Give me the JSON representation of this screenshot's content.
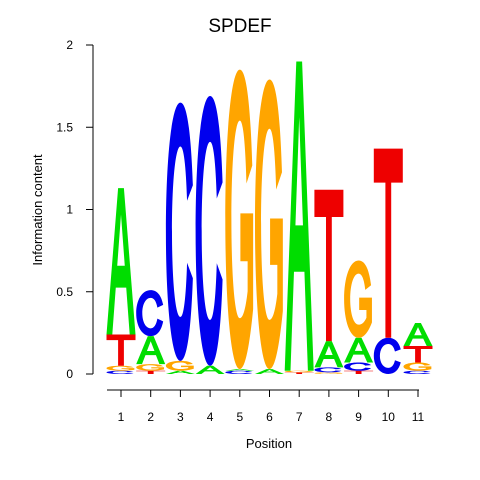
{
  "chart_data": {
    "type": "sequence-logo",
    "title": "SPDEF",
    "xlabel": "Position",
    "ylabel": "Information content",
    "ylim": [
      0,
      2
    ],
    "y_ticks": [
      "0",
      "0.5",
      "1",
      "1.5",
      "2"
    ],
    "positions": [
      "1",
      "2",
      "3",
      "4",
      "5",
      "6",
      "7",
      "8",
      "9",
      "10",
      "11"
    ],
    "colors": {
      "A": "#00dd00",
      "C": "#0000ee",
      "G": "#ffa500",
      "T": "#ee0000"
    },
    "columns": [
      {
        "position": "1",
        "letters": [
          {
            "base": "C",
            "height": 0.02
          },
          {
            "base": "G",
            "height": 0.03
          },
          {
            "base": "T",
            "height": 0.19
          },
          {
            "base": "A",
            "height": 0.89
          }
        ]
      },
      {
        "position": "2",
        "letters": [
          {
            "base": "T",
            "height": 0.02
          },
          {
            "base": "G",
            "height": 0.04
          },
          {
            "base": "A",
            "height": 0.17
          },
          {
            "base": "C",
            "height": 0.28
          }
        ]
      },
      {
        "position": "3",
        "letters": [
          {
            "base": "A",
            "height": 0.02
          },
          {
            "base": "G",
            "height": 0.06
          },
          {
            "base": "C",
            "height": 1.57
          }
        ]
      },
      {
        "position": "4",
        "letters": [
          {
            "base": "A",
            "height": 0.05
          },
          {
            "base": "C",
            "height": 1.64
          }
        ]
      },
      {
        "position": "5",
        "letters": [
          {
            "base": "C",
            "height": 0.02
          },
          {
            "base": "A",
            "height": 0.01
          },
          {
            "base": "G",
            "height": 1.82
          }
        ]
      },
      {
        "position": "6",
        "letters": [
          {
            "base": "A",
            "height": 0.03
          },
          {
            "base": "G",
            "height": 1.76
          }
        ]
      },
      {
        "position": "7",
        "letters": [
          {
            "base": "T",
            "height": 0.01
          },
          {
            "base": "G",
            "height": 0.01
          },
          {
            "base": "A",
            "height": 1.88
          }
        ]
      },
      {
        "position": "8",
        "letters": [
          {
            "base": "G",
            "height": 0.01
          },
          {
            "base": "C",
            "height": 0.03
          },
          {
            "base": "A",
            "height": 0.16
          },
          {
            "base": "T",
            "height": 0.92
          }
        ]
      },
      {
        "position": "9",
        "letters": [
          {
            "base": "T",
            "height": 0.02
          },
          {
            "base": "C",
            "height": 0.05
          },
          {
            "base": "A",
            "height": 0.15
          },
          {
            "base": "G",
            "height": 0.47
          }
        ]
      },
      {
        "position": "10",
        "letters": [
          {
            "base": "C",
            "height": 0.22
          },
          {
            "base": "T",
            "height": 1.15
          }
        ]
      },
      {
        "position": "11",
        "letters": [
          {
            "base": "C",
            "height": 0.02
          },
          {
            "base": "G",
            "height": 0.05
          },
          {
            "base": "T",
            "height": 0.1
          },
          {
            "base": "A",
            "height": 0.14
          }
        ]
      }
    ]
  }
}
